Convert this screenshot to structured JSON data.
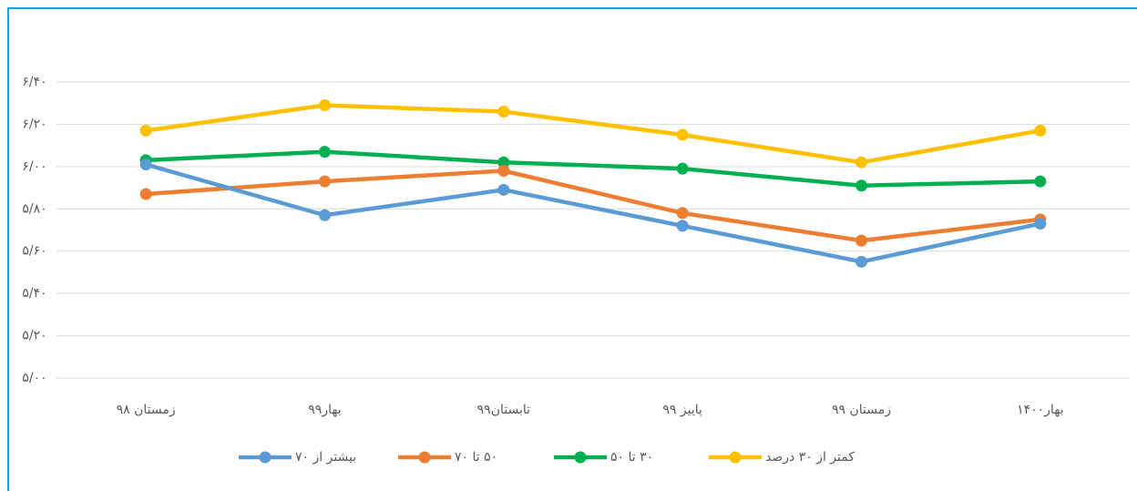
{
  "chart_data": {
    "type": "line",
    "categories": [
      "زمستان ۹۸",
      "بهار۹۹",
      "تابستان۹۹",
      "پاییز ۹۹",
      "زمستان ۹۹",
      "بهار۱۴۰۰"
    ],
    "series": [
      {
        "name": "کمتر از ۳۰ درصد",
        "color": "#ffc000",
        "values": [
          6.17,
          6.29,
          6.26,
          6.15,
          6.02,
          6.17
        ]
      },
      {
        "name": "۳۰ تا ۵۰",
        "color": "#00b050",
        "values": [
          6.03,
          6.07,
          6.02,
          5.99,
          5.91,
          5.93
        ]
      },
      {
        "name": "۵۰ تا ۷۰",
        "color": "#ed7d31",
        "values": [
          5.87,
          5.93,
          5.98,
          5.78,
          5.65,
          5.75
        ]
      },
      {
        "name": "بیشتر از ۷۰",
        "color": "#5b9bd5",
        "values": [
          6.01,
          5.77,
          5.89,
          5.72,
          5.55,
          5.73
        ]
      }
    ],
    "ylim": [
      5.0,
      6.4
    ],
    "yticks": [
      {
        "value": 5.0,
        "label": "۵/۰۰"
      },
      {
        "value": 5.2,
        "label": "۵/۲۰"
      },
      {
        "value": 5.4,
        "label": "۵/۴۰"
      },
      {
        "value": 5.6,
        "label": "۵/۶۰"
      },
      {
        "value": 5.8,
        "label": "۵/۸۰"
      },
      {
        "value": 6.0,
        "label": "۶/۰۰"
      },
      {
        "value": 6.2,
        "label": "۶/۲۰"
      },
      {
        "value": 6.4,
        "label": "۶/۴۰"
      }
    ],
    "grid": true
  }
}
